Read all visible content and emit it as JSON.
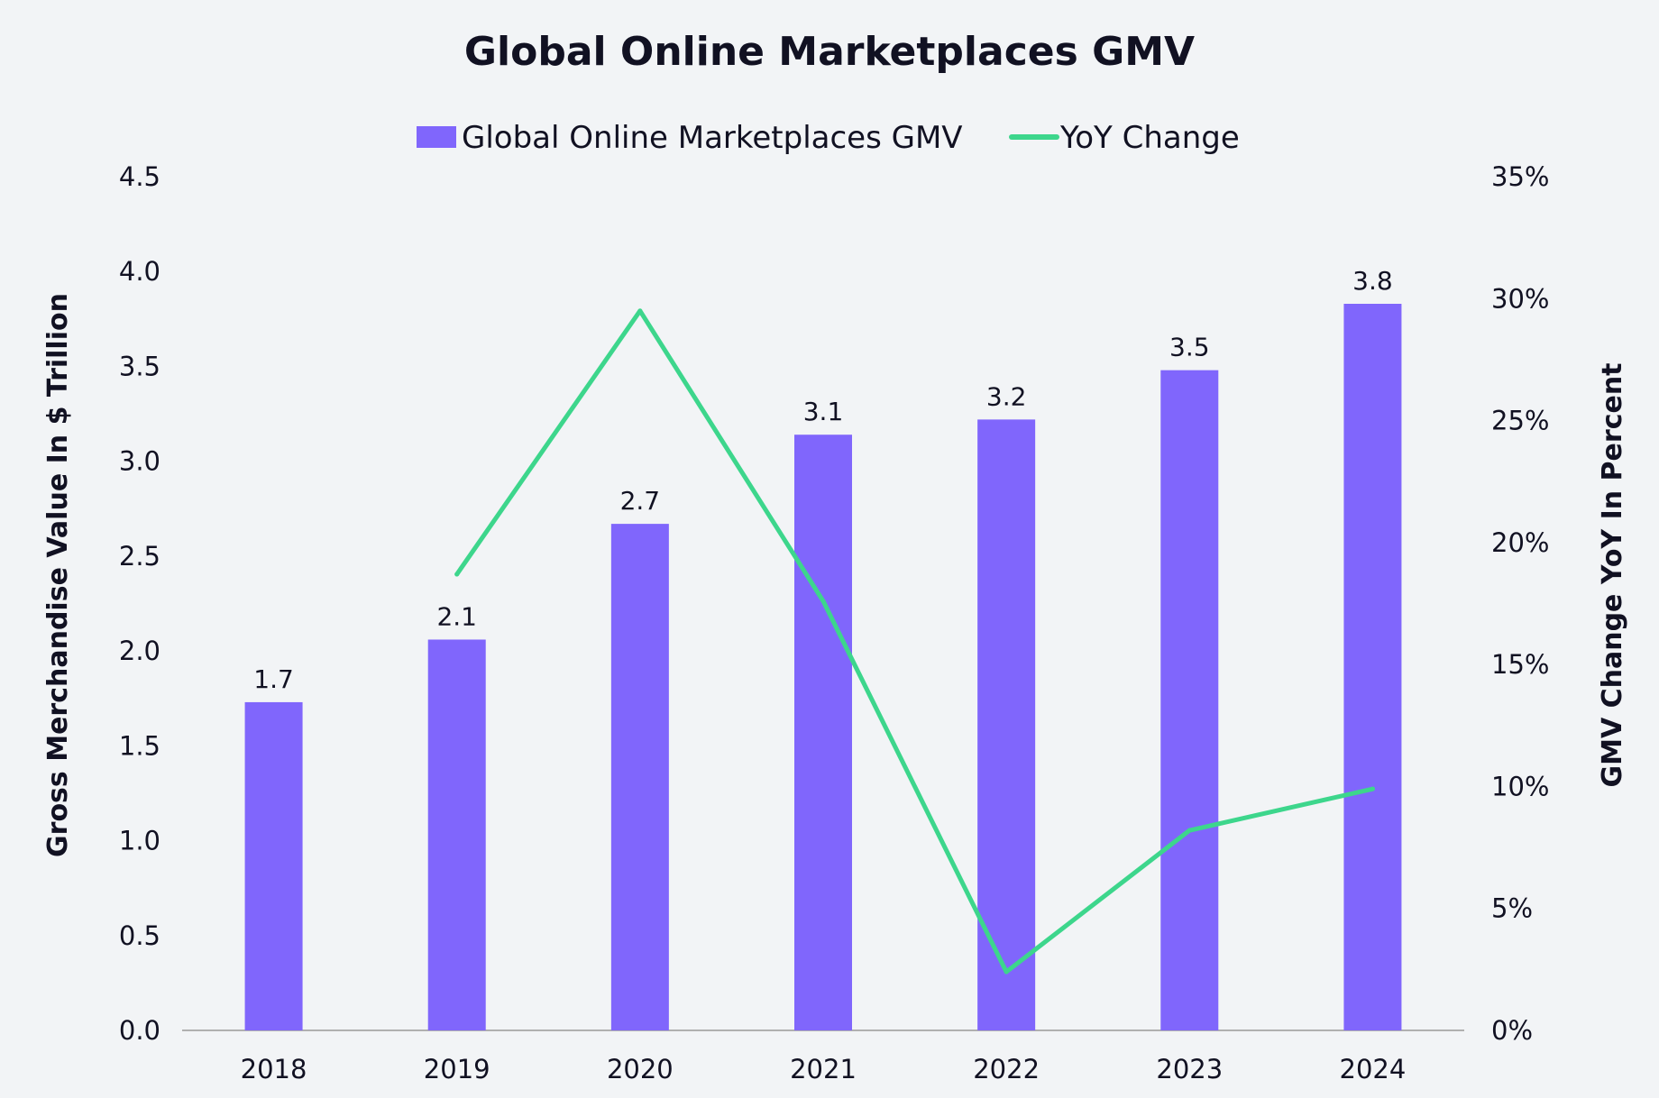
{
  "chart_data": {
    "type": "bar",
    "title": "Global Online Marketplaces GMV",
    "categories": [
      "2018",
      "2019",
      "2020",
      "2021",
      "2022",
      "2023",
      "2024"
    ],
    "series": [
      {
        "name": "Global Online Marketplaces GMV",
        "type": "bar",
        "axis": "left",
        "values": [
          1.73,
          2.06,
          2.67,
          3.14,
          3.22,
          3.48,
          3.83
        ],
        "data_labels": [
          "1.7",
          "2.1",
          "2.7",
          "3.1",
          "3.2",
          "3.5",
          "3.8"
        ]
      },
      {
        "name": "YoY Change",
        "type": "line",
        "axis": "right",
        "values": [
          null,
          18.7,
          29.5,
          17.6,
          2.4,
          8.2,
          9.9
        ]
      }
    ],
    "ylabel": "Gross Merchandise Value In $ Trillion",
    "y2label": "GMV Change YoY In Percent",
    "ylim": [
      0,
      4.5
    ],
    "y2lim": [
      0,
      35
    ],
    "yticks": [
      "0.0",
      "0.5",
      "1.0",
      "1.5",
      "2.0",
      "2.5",
      "3.0",
      "3.5",
      "4.0",
      "4.5"
    ],
    "y2ticks": [
      "0%",
      "5%",
      "10%",
      "15%",
      "20%",
      "25%",
      "30%",
      "35%"
    ],
    "legend": "top-center",
    "grid": false,
    "colors": {
      "bar": "#8066fc",
      "line": "#3dd68c",
      "axis": "#999999",
      "text": "#111122"
    }
  }
}
